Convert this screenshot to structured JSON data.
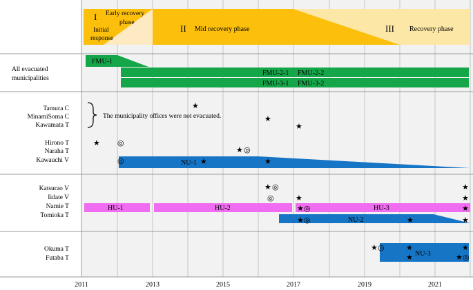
{
  "phases": {
    "p1_numeral": "I",
    "p1_label": "Initial response",
    "p1_label_line1": "Initial",
    "p1_label_line2": "response",
    "early_label": "Early recovery phase",
    "early_line1": "Early recovery",
    "early_line2": "phase",
    "p2_numeral": "II",
    "p2_label": "Mid recovery phase",
    "p3_numeral": "III",
    "p3_label": "Recovery phase"
  },
  "rows": {
    "all_evacuated": "All evacuated municipalities",
    "all_evacuated_line1": "All evacuated",
    "all_evacuated_line2": "municipalities",
    "group2": [
      "Tamura C",
      "MinamiSoma C",
      "Kawamata T",
      "Hirono T",
      "Naraha T",
      "Kawauchi V"
    ],
    "group3": [
      "Katsurao V",
      "Iidate V",
      "Namie T",
      "Tomioka T"
    ],
    "group4": [
      "Okuma T",
      "Futaba T"
    ]
  },
  "note": "The municipality offices were not evacuated.",
  "bars": {
    "fmu1": "FMU-1",
    "fmu21": "FMU-2-1",
    "fmu22": "FMU-2-2",
    "fmu31": "FMU-3-1",
    "fmu32": "FMU-3-2",
    "nu1": "NU-1",
    "nu2": "NU-2",
    "nu3": "NU-3",
    "hu1": "HU-1",
    "hu2": "HU-2",
    "hu3": "HU-3"
  },
  "years": [
    "2011",
    "2013",
    "2015",
    "2017",
    "2019",
    "2021"
  ],
  "colors": {
    "phase_yellow": "#fbbf0c",
    "phase_light": "#fdeac2",
    "phase_cream": "#fdf5dc",
    "fmu_green": "#16a64a",
    "nu_blue": "#1775c6",
    "hu_pink": "#f06cf0",
    "grid": "#bdbdbd",
    "cell_bg": "#f2f2f2"
  },
  "symbols": {
    "star": "★",
    "circle": "◎"
  }
}
